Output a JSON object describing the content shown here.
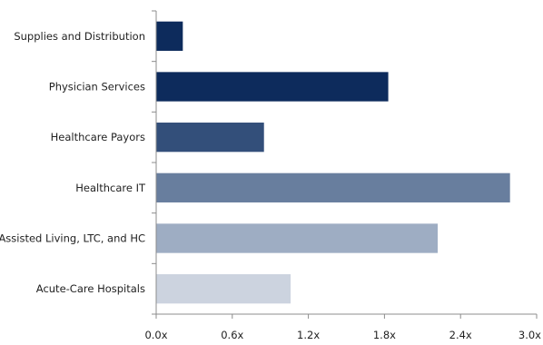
{
  "chart_data": {
    "type": "bar",
    "orientation": "horizontal",
    "categories": [
      "Supplies and Distribution",
      "Physician Services",
      "Healthcare Payors",
      "Healthcare IT",
      "Assisted Living, LTC, and HC",
      "Acute-Care Hospitals"
    ],
    "values": [
      0.21,
      1.83,
      0.85,
      2.79,
      2.22,
      1.06
    ],
    "colors": [
      "#0d2b5c",
      "#0d2b5c",
      "#334f7a",
      "#687e9e",
      "#9eadc3",
      "#ccd3df"
    ],
    "xlim": [
      0,
      3.0
    ],
    "xticks": [
      0,
      0.6,
      1.2,
      1.8,
      2.4,
      3.0
    ],
    "xtick_labels": [
      "0.0x",
      "0.6x",
      "1.2x",
      "1.8x",
      "2.4x",
      "3.0x"
    ],
    "title": "",
    "xlabel": "",
    "ylabel": "",
    "grid": false,
    "legend": "none"
  }
}
